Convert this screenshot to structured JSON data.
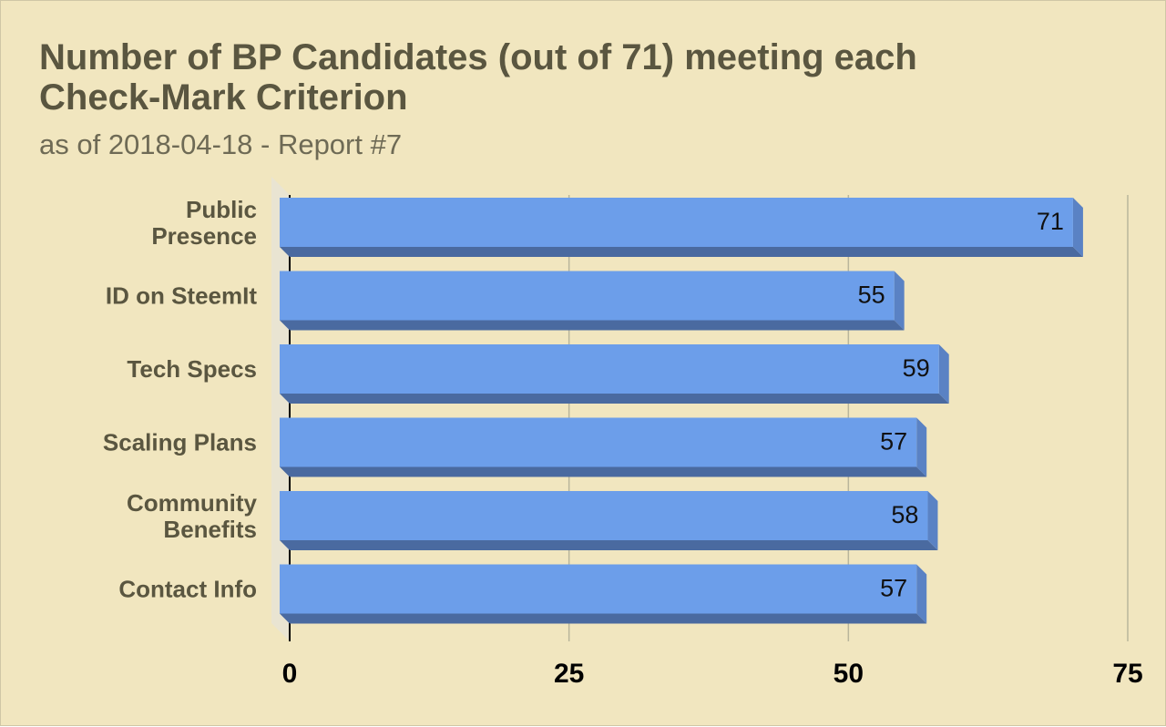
{
  "chart_data": {
    "type": "bar",
    "orientation": "horizontal",
    "title": "Number of BP Candidates (out of 71) meeting each Check-Mark Criterion",
    "subtitle": "as of 2018-04-18 - Report #7",
    "categories": [
      [
        "Public",
        "Presence"
      ],
      [
        "ID on SteemIt"
      ],
      [
        "Tech Specs"
      ],
      [
        "Scaling Plans"
      ],
      [
        "Community",
        "Benefits"
      ],
      [
        "Contact Info"
      ]
    ],
    "values": [
      71,
      55,
      59,
      57,
      58,
      57
    ],
    "xlim": [
      0,
      75
    ],
    "xticks": [
      0,
      25,
      50,
      75
    ],
    "grid": true,
    "data_labels": true,
    "colors": {
      "bar_face": "#6c9eea",
      "bar_side": "#4a6aa0",
      "grid": "#b9b59b",
      "background": "#f1e6bf"
    }
  }
}
